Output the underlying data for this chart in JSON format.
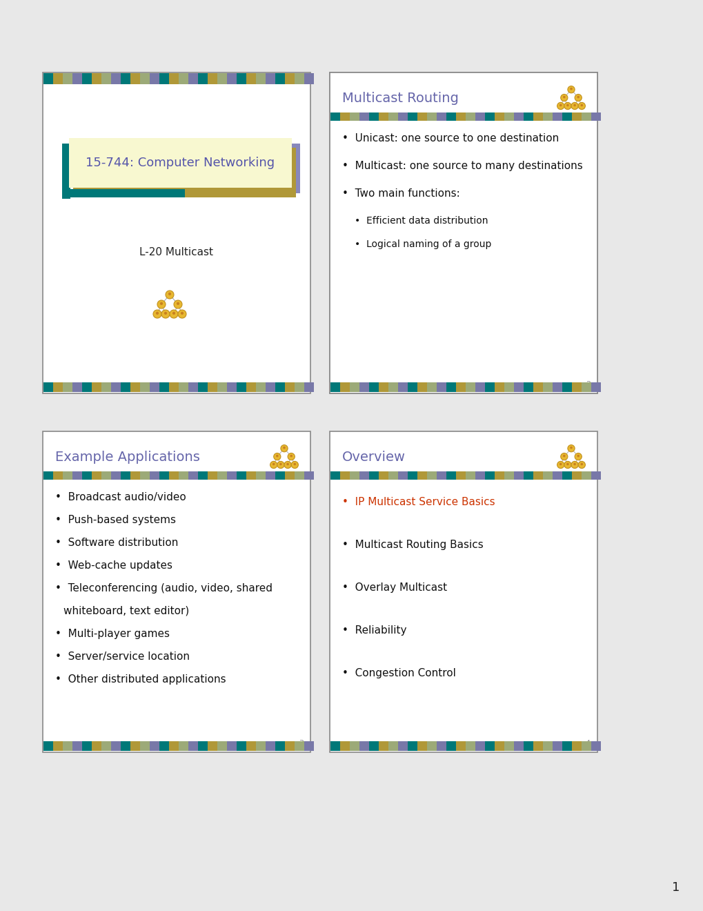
{
  "bg_color": "#e8e8e8",
  "slide_bg": "#ffffff",
  "border_color": "#777777",
  "title_color": "#6666aa",
  "body_color": "#111111",
  "highlight_color": "#cc3300",
  "stripe_colors": [
    "#007878",
    "#b09838",
    "#9caa78",
    "#7878a8"
  ],
  "slide1": {
    "title": "15-744: Computer Networking",
    "subtitle": "L-20 Multicast",
    "title_box_bg": "#f8f8d0",
    "title_box_teal": "#007878",
    "title_box_purple": "#8888bb",
    "title_box_gold": "#b09838"
  },
  "slide2": {
    "title": "Multicast Routing",
    "bullets_l1": [
      "Unicast: one source to one destination",
      "Multicast: one source to many destinations",
      "Two main functions:"
    ],
    "bullets_l2": [
      "Efficient data distribution",
      "Logical naming of a group"
    ]
  },
  "slide3": {
    "title": "Example Applications",
    "bullets": [
      "Broadcast audio/video",
      "Push-based systems",
      "Software distribution",
      "Web-cache updates",
      "Teleconferencing (audio, video, shared\nwhiteboard, text editor)",
      "Multi-player games",
      "Server/service location",
      "Other distributed applications"
    ]
  },
  "slide4": {
    "title": "Overview",
    "bullets": [
      "IP Multicast Service Basics",
      "Multicast Routing Basics",
      "Overlay Multicast",
      "Reliability",
      "Congestion Control"
    ],
    "highlight_index": 0
  },
  "page_number": "1"
}
